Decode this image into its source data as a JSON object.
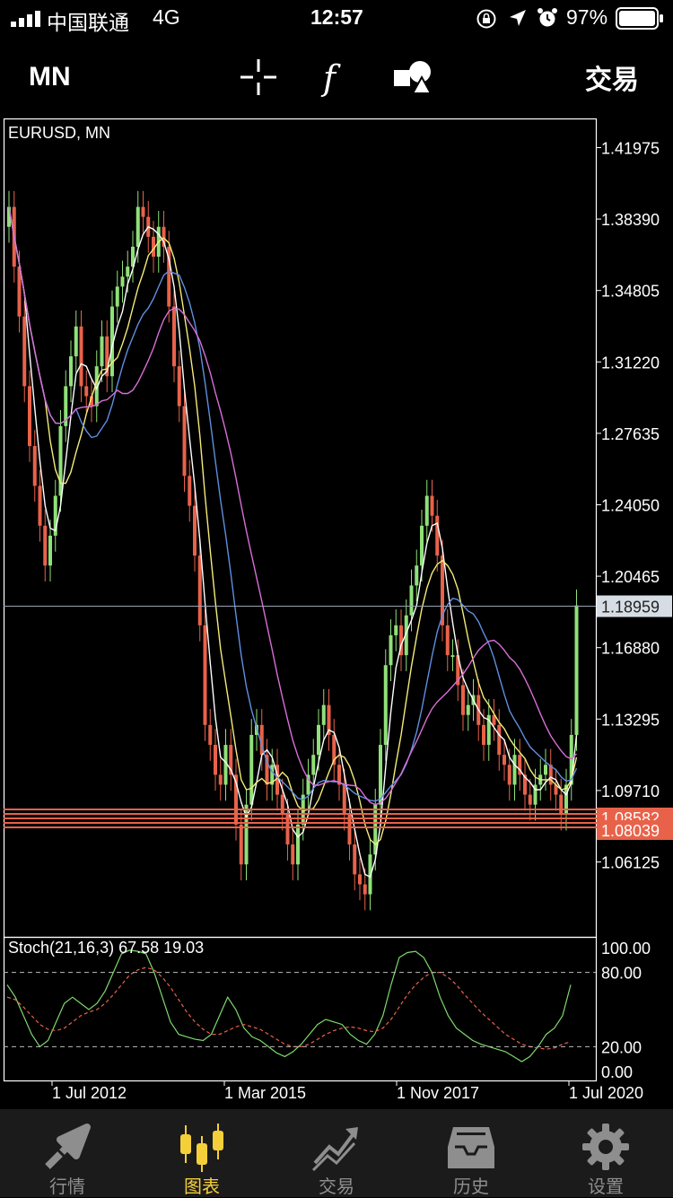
{
  "status_bar": {
    "carrier": "中国联通",
    "network": "4G",
    "time": "12:57",
    "battery": "97%"
  },
  "toolbar": {
    "period": "MN",
    "trade_label": "交易",
    "icons": [
      "crosshair-icon",
      "function-icon",
      "objects-icon"
    ]
  },
  "chart": {
    "symbol_label": "EURUSD, MN",
    "indicator_label": "Stoch(21,16,3) 67.58 19.03",
    "price_ticks": [
      "1.41975",
      "1.38390",
      "1.34805",
      "1.31220",
      "1.27635",
      "1.24050",
      "1.20465",
      "1.16880",
      "1.13295",
      "1.09710",
      "1.06125"
    ],
    "current_price": "1.18959",
    "level_prices": [
      "1.08582",
      "1.08039"
    ],
    "stoch_ticks": [
      "100.00",
      "80.00",
      "20.00",
      "0.00"
    ],
    "date_ticks": [
      "1 Jul 2012",
      "1 Mar 2015",
      "1 Nov 2017",
      "1 Jul 2020"
    ],
    "colors": {
      "bull": "#8fe079",
      "bear": "#e8624a",
      "level": "#e8624a",
      "ma_fast": "#ffffff",
      "ma_mid": "#f5ec7a",
      "ma_slow": "#5f8fe0",
      "ma_long": "#d76fd6",
      "stoch_main": "#7fd96c",
      "stoch_signal": "#e8624a"
    }
  },
  "tab_bar": {
    "tabs": [
      {
        "label": "行情",
        "icon": "quotes-icon"
      },
      {
        "label": "图表",
        "icon": "chart-icon"
      },
      {
        "label": "交易",
        "icon": "trade-icon"
      },
      {
        "label": "历史",
        "icon": "history-icon"
      },
      {
        "label": "设置",
        "icon": "settings-icon"
      }
    ],
    "active": "图表"
  }
}
